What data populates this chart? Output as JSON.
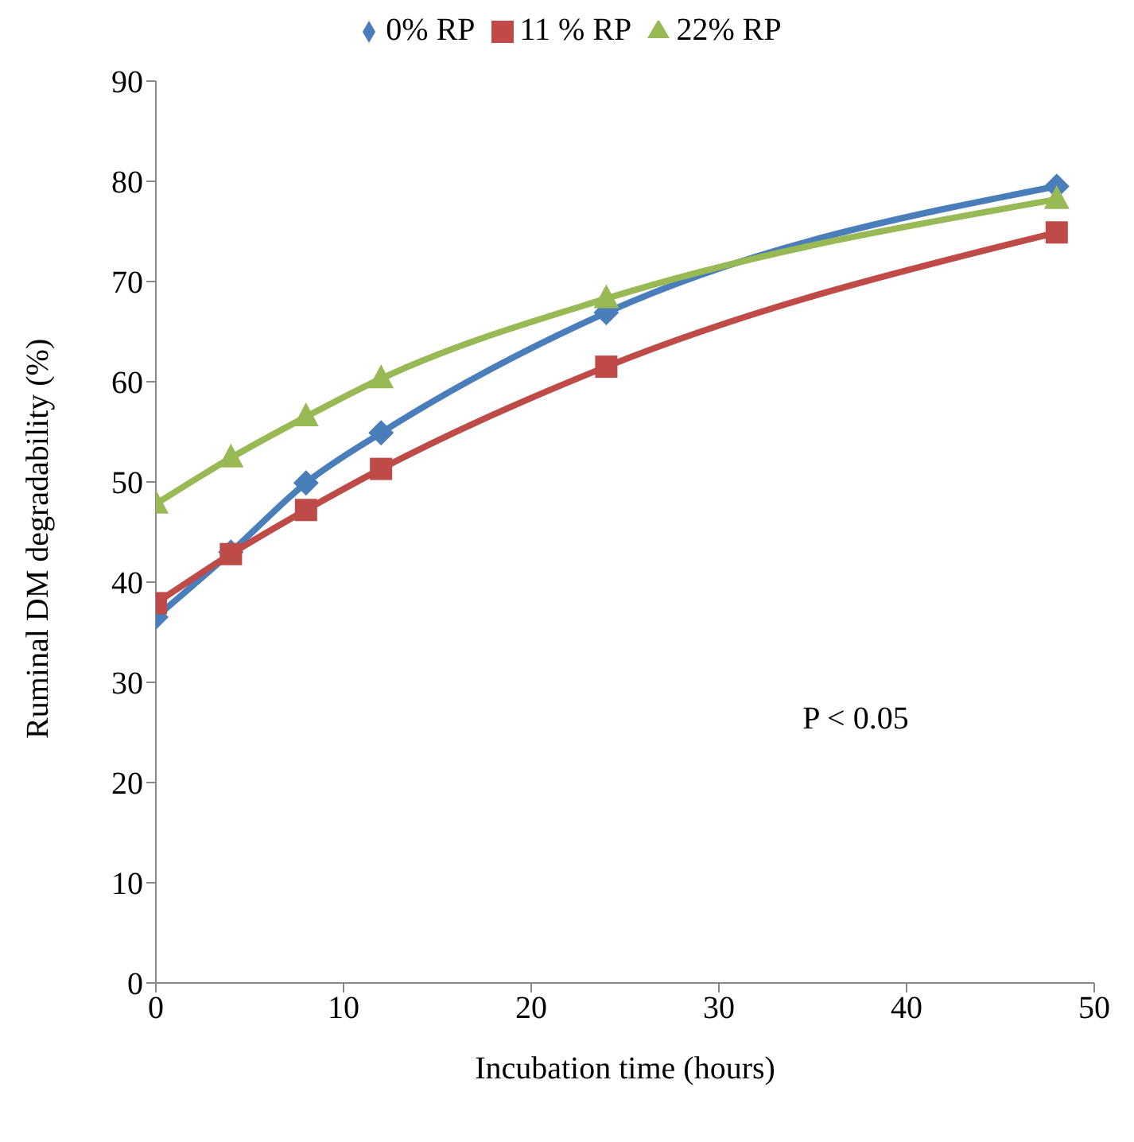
{
  "chart_data": {
    "type": "line",
    "xlabel": "Incubation time (hours)",
    "ylabel": "Ruminal DM degradability (%)",
    "x": [
      0,
      4,
      8,
      12,
      24,
      48
    ],
    "series": [
      {
        "name": "0% RP",
        "color": "#4a7ebb",
        "values": [
          36.5,
          43,
          49.9,
          54.9,
          66.9,
          79.5
        ],
        "marker": "diamond"
      },
      {
        "name": "11 % RP",
        "color": "#be4b48",
        "values": [
          37.9,
          42.8,
          47.2,
          51.3,
          61.5,
          74.9
        ],
        "marker": "square"
      },
      {
        "name": "22% RP",
        "color": "#98b954",
        "values": [
          47.8,
          52.4,
          56.5,
          60.3,
          68.3,
          78.2
        ],
        "marker": "triangle"
      }
    ],
    "xlim": [
      0,
      50
    ],
    "xticks": [
      0,
      10,
      20,
      30,
      40,
      50
    ],
    "ylim": [
      0,
      90
    ],
    "yticks": [
      0,
      10,
      20,
      30,
      40,
      50,
      60,
      70,
      80,
      90
    ],
    "grid": false,
    "legend": "top",
    "line_style": "solid",
    "annotations": [
      "P < 0.05"
    ]
  }
}
